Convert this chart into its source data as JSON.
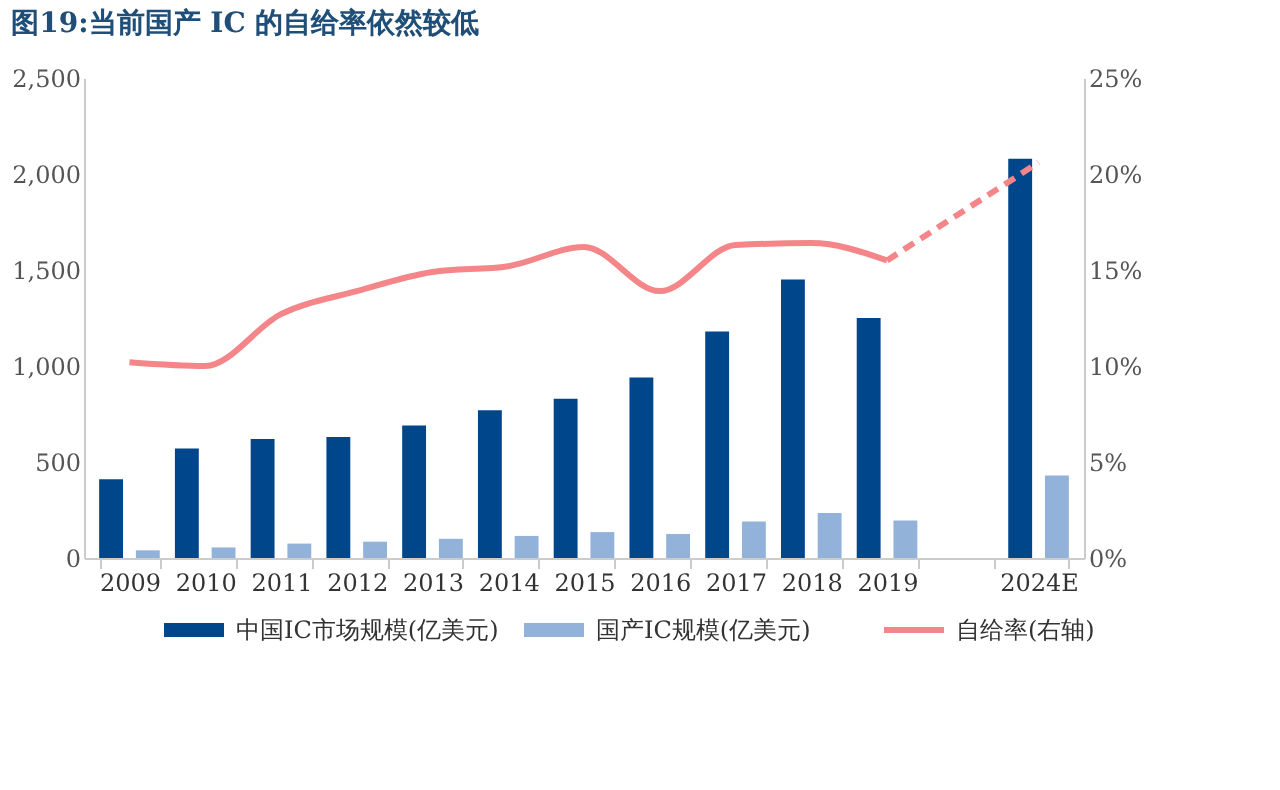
{
  "chart_data": {
    "type": "bar",
    "title": "图19:当前国产 IC 的自给率依然较低",
    "categories": [
      "2009",
      "2010",
      "2011",
      "2012",
      "2013",
      "2014",
      "2015",
      "2016",
      "2017",
      "2018",
      "2019",
      null,
      "2024E"
    ],
    "series": [
      {
        "name": "中国IC市场规模(亿美元)",
        "color": "#00468b",
        "values": [
          410,
          570,
          620,
          630,
          690,
          770,
          830,
          940,
          1180,
          1450,
          1250,
          null,
          2080
        ]
      },
      {
        "name": "国产IC规模(亿美元)",
        "color": "#93b2da",
        "values": [
          40,
          55,
          75,
          85,
          100,
          115,
          135,
          125,
          190,
          235,
          195,
          null,
          430
        ]
      },
      {
        "name": "自给率(右轴)",
        "type": "line",
        "axis": "y2",
        "color": "#f4868a",
        "line_style": "solid",
        "values": [
          10.2,
          10.0,
          12.7,
          13.9,
          14.9,
          15.2,
          16.2,
          13.9,
          16.3,
          16.4,
          15.5,
          null,
          null
        ]
      },
      {
        "type": "line",
        "axis": "y2",
        "color": "#f4868a",
        "line_style": "dashed",
        "values": [
          null,
          null,
          null,
          null,
          null,
          null,
          null,
          null,
          null,
          null,
          15.5,
          null,
          20.6
        ]
      }
    ],
    "ylim": [
      0,
      2500
    ],
    "yticks": [
      0,
      {
        "value": 500,
        "label": "500"
      },
      {
        "value": 1000,
        "label": "1,000"
      },
      {
        "value": 1500,
        "label": "1,500"
      },
      {
        "value": 2000,
        "label": "2,000"
      },
      {
        "value": 2500,
        "label": "2,500"
      }
    ],
    "y2lim": [
      0,
      25
    ],
    "y2ticks": [
      {
        "value": 0,
        "label": "0%"
      },
      {
        "value": 5,
        "label": "5%"
      },
      {
        "value": 10,
        "label": "10%"
      },
      {
        "value": 15,
        "label": "15%"
      },
      {
        "value": 20,
        "label": "20%"
      },
      {
        "value": 25,
        "label": "25%"
      }
    ],
    "grid": false,
    "legend": "bottom"
  }
}
